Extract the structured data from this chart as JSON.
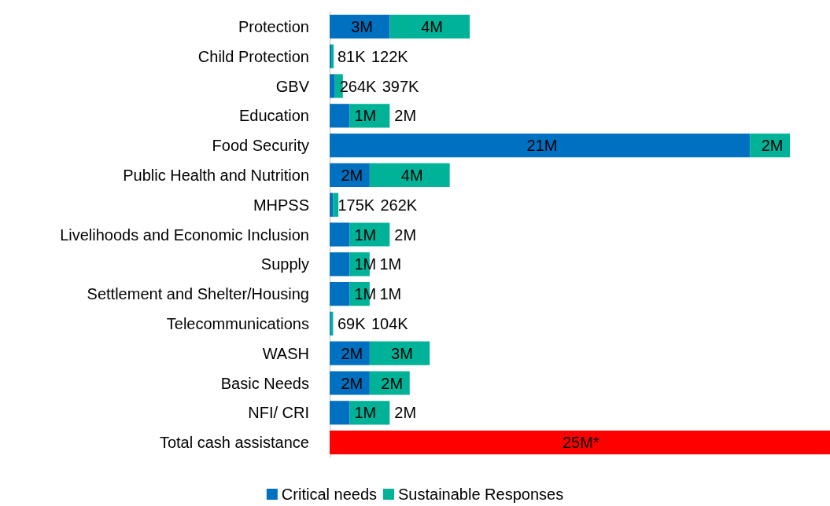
{
  "chart_data": {
    "type": "bar",
    "orientation": "horizontal",
    "stacked": true,
    "legend": "bottom",
    "categories": [
      "Protection",
      "Child Protection",
      "GBV",
      "Education",
      "Food Security",
      "Public Health and Nutrition",
      "MHPSS",
      "Livelihoods and Economic Inclusion",
      "Supply",
      "Settlement and Shelter/Housing",
      "Telecommunications",
      "WASH",
      "Basic Needs",
      "NFI/ CRI",
      "Total cash assistance"
    ],
    "series": [
      {
        "name": "Critical needs",
        "color": "#0070c0",
        "values": [
          3000000,
          81000,
          264000,
          1000000,
          21000000,
          2000000,
          175000,
          1000000,
          1000000,
          1000000,
          69000,
          2000000,
          2000000,
          1000000,
          null
        ],
        "value_labels": [
          "3M",
          "81K",
          "264K",
          "1M",
          "21M",
          "2M",
          "175K",
          "1M",
          "1M",
          "1M",
          "69K",
          "2M",
          "2M",
          "1M",
          null
        ]
      },
      {
        "name": "Sustainable Responses",
        "color": "#00b398",
        "values": [
          4000000,
          122000,
          397000,
          2000000,
          2000000,
          4000000,
          262000,
          2000000,
          1000000,
          1000000,
          104000,
          3000000,
          2000000,
          2000000,
          null
        ],
        "value_labels": [
          "4M",
          "122K",
          "397K",
          "2M",
          "2M",
          "4M",
          "262K",
          "2M",
          "1M",
          "1M",
          "104K",
          "3M",
          "2M",
          "2M",
          null
        ]
      },
      {
        "color": "#ff0000",
        "values": [
          null,
          null,
          null,
          null,
          null,
          null,
          null,
          null,
          null,
          null,
          null,
          null,
          null,
          null,
          25000000
        ],
        "value_labels": [
          null,
          null,
          null,
          null,
          null,
          null,
          null,
          null,
          null,
          null,
          null,
          null,
          null,
          null,
          "25M*"
        ]
      }
    ]
  }
}
